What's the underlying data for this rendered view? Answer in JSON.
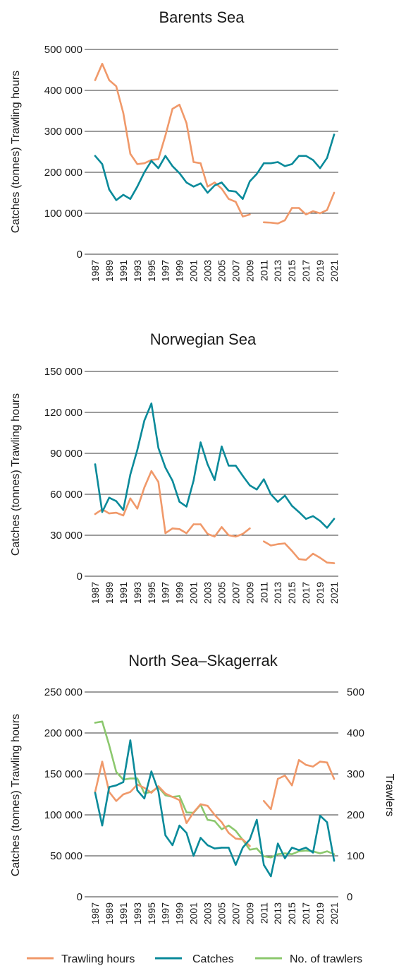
{
  "colors": {
    "trawling_hours": "#f0996a",
    "catches": "#0a8a9a",
    "trawlers": "#8cc86e"
  },
  "legend": [
    {
      "label": "Trawling hours",
      "color": "#f0996a"
    },
    {
      "label": "Catches",
      "color": "#0a8a9a"
    },
    {
      "label": "No. of trawlers",
      "color": "#8cc86e"
    }
  ],
  "chart_data": [
    {
      "type": "line",
      "title": "Barents Sea",
      "ylabel": "Catches (tonnes)  Trawling hours",
      "ylim": [
        0,
        500000
      ],
      "yticks": [
        "0",
        "100 000",
        "200 000",
        "300 000",
        "400 000",
        "500 000"
      ],
      "xticks": [
        "1987",
        "1989",
        "1991",
        "1993",
        "1995",
        "1997",
        "1999",
        "2001",
        "2003",
        "2005",
        "2007",
        "2009",
        "2011",
        "2013",
        "2015",
        "2017",
        "2019",
        "2021"
      ],
      "x": [
        1987,
        1988,
        1989,
        1990,
        1991,
        1992,
        1993,
        1994,
        1995,
        1996,
        1997,
        1998,
        1999,
        2000,
        2001,
        2002,
        2003,
        2004,
        2005,
        2006,
        2007,
        2008,
        2009,
        2010,
        2011,
        2012,
        2013,
        2014,
        2015,
        2016,
        2017,
        2018,
        2019,
        2020,
        2021
      ],
      "series": [
        {
          "name": "Trawling hours",
          "color_key": "trawling_hours",
          "axis": "left",
          "values": [
            425000,
            465000,
            425000,
            410000,
            345000,
            245000,
            220000,
            222000,
            230000,
            232000,
            290000,
            355000,
            365000,
            320000,
            225000,
            222000,
            165000,
            175000,
            160000,
            135000,
            128000,
            92000,
            97000,
            null,
            78000,
            77000,
            75000,
            83000,
            113000,
            113000,
            97000,
            105000,
            100000,
            108000,
            150000
          ]
        },
        {
          "name": "Catches",
          "color_key": "catches",
          "axis": "left",
          "values": [
            240000,
            220000,
            158000,
            132000,
            145000,
            135000,
            165000,
            200000,
            228000,
            210000,
            240000,
            215000,
            198000,
            175000,
            165000,
            173000,
            150000,
            168000,
            175000,
            155000,
            153000,
            135000,
            178000,
            196000,
            222000,
            222000,
            225000,
            215000,
            220000,
            240000,
            240000,
            230000,
            210000,
            235000,
            292000
          ]
        }
      ]
    },
    {
      "type": "line",
      "title": "Norwegian Sea",
      "ylabel": "Catches (tonnes)  Trawling hours",
      "ylim": [
        0,
        150000
      ],
      "yticks": [
        "0",
        "30 000",
        "60 000",
        "90 000",
        "120 000",
        "150 000"
      ],
      "xticks": [
        "1987",
        "1989",
        "1991",
        "1993",
        "1995",
        "1997",
        "1999",
        "2001",
        "2003",
        "2005",
        "2007",
        "2009",
        "2011",
        "2013",
        "2015",
        "2017",
        "2019",
        "2021"
      ],
      "x": [
        1987,
        1988,
        1989,
        1990,
        1991,
        1992,
        1993,
        1994,
        1995,
        1996,
        1997,
        1998,
        1999,
        2000,
        2001,
        2002,
        2003,
        2004,
        2005,
        2006,
        2007,
        2008,
        2009,
        2010,
        2011,
        2012,
        2013,
        2014,
        2015,
        2016,
        2017,
        2018,
        2019,
        2020,
        2021
      ],
      "series": [
        {
          "name": "Trawling hours",
          "color_key": "trawling_hours",
          "axis": "left",
          "values": [
            45500,
            49000,
            46000,
            46500,
            44500,
            57000,
            49500,
            65000,
            77000,
            69000,
            31500,
            35000,
            34500,
            31500,
            38000,
            38000,
            31000,
            29000,
            36000,
            30000,
            29000,
            31000,
            35000,
            null,
            25500,
            22500,
            23500,
            24000,
            18500,
            12500,
            12000,
            16500,
            13500,
            10000,
            9500
          ]
        },
        {
          "name": "Catches",
          "color_key": "catches",
          "axis": "left",
          "values": [
            82000,
            47000,
            57500,
            55000,
            48500,
            74500,
            92500,
            114000,
            126500,
            94000,
            79500,
            70000,
            54500,
            51000,
            70000,
            98000,
            82000,
            70500,
            95000,
            81000,
            81000,
            73500,
            66500,
            63500,
            71000,
            60000,
            54500,
            59000,
            51500,
            47000,
            42000,
            44000,
            40500,
            35500,
            42000
          ]
        }
      ]
    },
    {
      "type": "line",
      "title": "North Sea–Skagerrak",
      "ylabel": "Catches (tonnes)  Trawling hours",
      "ylabel_right": "Trawlers",
      "ylim": [
        0,
        250000
      ],
      "ylim_right": [
        0,
        500
      ],
      "yticks": [
        "0",
        "50 000",
        "100 000",
        "150 000",
        "200 000",
        "250 000"
      ],
      "yticks_right": [
        "0",
        "100",
        "200",
        "300",
        "400",
        "500"
      ],
      "xticks": [
        "1987",
        "1989",
        "1991",
        "1993",
        "1995",
        "1997",
        "1999",
        "2001",
        "2003",
        "2005",
        "2007",
        "2009",
        "2011",
        "2013",
        "2015",
        "2017",
        "2019",
        "2021"
      ],
      "x": [
        1987,
        1988,
        1989,
        1990,
        1991,
        1992,
        1993,
        1994,
        1995,
        1996,
        1997,
        1998,
        1999,
        2000,
        2001,
        2002,
        2003,
        2004,
        2005,
        2006,
        2007,
        2008,
        2009,
        2010,
        2011,
        2012,
        2013,
        2014,
        2015,
        2016,
        2017,
        2018,
        2019,
        2020,
        2021
      ],
      "series": [
        {
          "name": "Trawling hours",
          "color_key": "trawling_hours",
          "axis": "left",
          "values": [
            128000,
            165000,
            128000,
            117000,
            125000,
            128000,
            137000,
            133000,
            127000,
            135000,
            126000,
            122000,
            118000,
            90000,
            103000,
            113000,
            111000,
            100000,
            91000,
            78000,
            71000,
            70000,
            62000,
            null,
            117000,
            107000,
            144000,
            148000,
            136000,
            167000,
            161000,
            159000,
            165000,
            164000,
            144000
          ]
        },
        {
          "name": "Catches",
          "color_key": "catches",
          "axis": "left",
          "values": [
            127000,
            87000,
            134000,
            136000,
            140000,
            191000,
            130000,
            120000,
            153000,
            129000,
            75000,
            63000,
            87000,
            78000,
            50000,
            72000,
            63000,
            59000,
            60000,
            60000,
            39000,
            60000,
            70000,
            94000,
            39000,
            25000,
            65000,
            47000,
            60000,
            57000,
            60000,
            54000,
            99000,
            91000,
            44000
          ]
        },
        {
          "name": "No. of trawlers",
          "color_key": "trawlers",
          "axis": "right",
          "values": [
            425,
            428,
            370,
            305,
            286,
            289,
            289,
            253,
            256,
            268,
            248,
            244,
            246,
            206,
            205,
            225,
            188,
            185,
            165,
            174,
            161,
            139,
            115,
            118,
            99,
            96,
            104,
            106,
            104,
            111,
            113,
            111,
            106,
            111,
            104
          ]
        }
      ]
    }
  ]
}
